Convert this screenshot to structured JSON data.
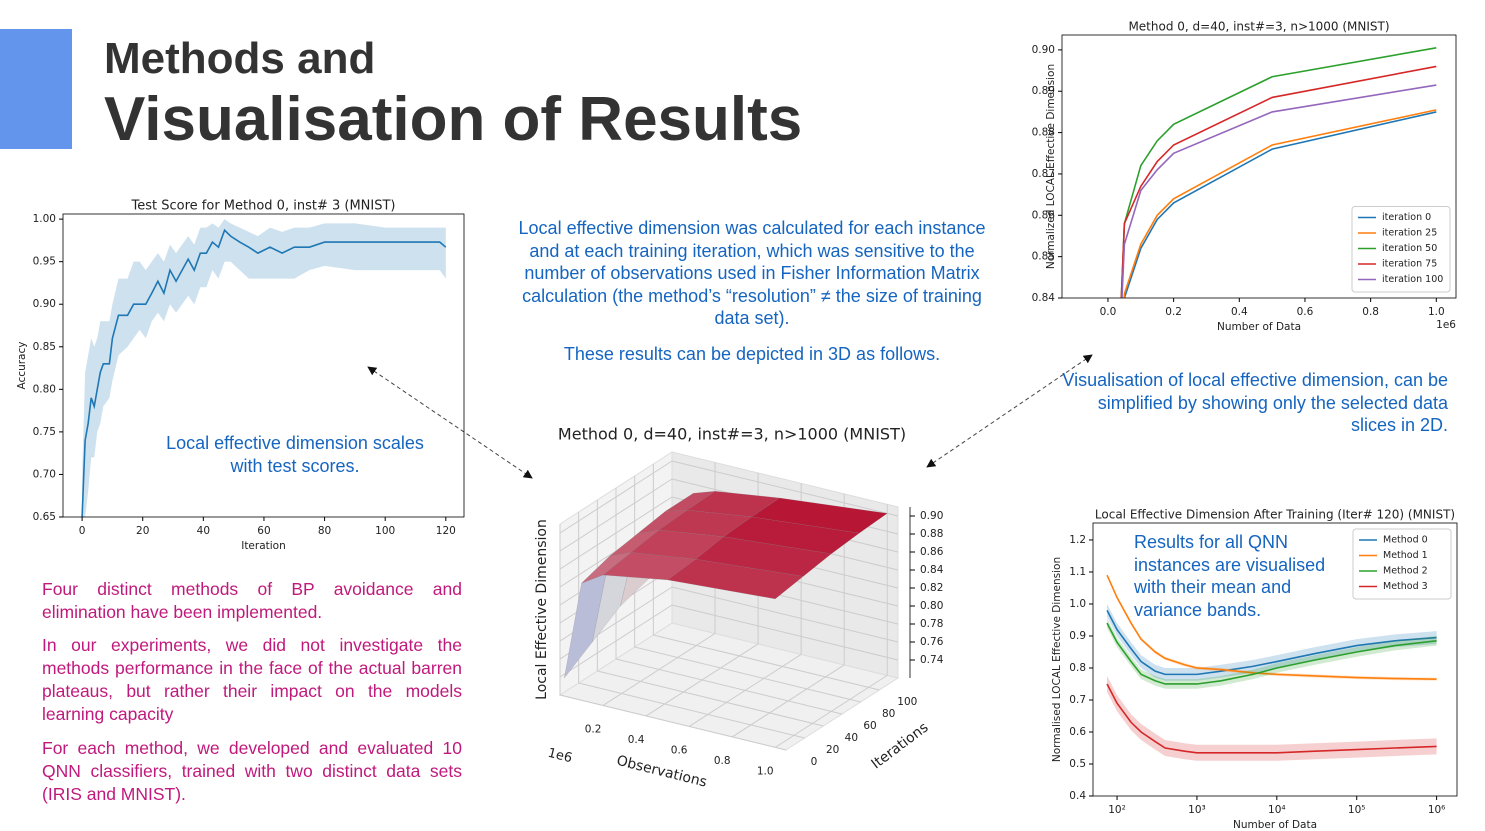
{
  "header": {
    "title_line1": "Methods and",
    "title_line2": "Visualisation of Results"
  },
  "texts": {
    "center": [
      "Local effective dimension was calculated for each instance and at each training iteration, which was sensitive to the number of observations used in Fisher Information Matrix calculation (the method’s “resolution” ≠ the size of training data set).",
      "These results can be depicted in 3D as follows."
    ],
    "right": "Visualisation of local effective dimension, can be simplified by showing only the selected data slices in 2D.",
    "left_annotation": "Local effective dimension scales with test scores.",
    "bottom_left": [
      "Four distinct methods of BP avoidance and elimination have been implemented.",
      "In our experiments, we did not investigate the methods performance in the face of the actual barren plateaus, but rather their impact on the models learning capacity",
      "For each method, we developed and evaluated 10 QNN classifiers, trained  with two distinct data sets (IRIS and MNIST)."
    ],
    "chart_note": "Results for all QNN instances are visualised with their mean and variance bands."
  },
  "chart_data": [
    {
      "type": "line",
      "title": "Test Score for Method 0, inst# 3 (MNIST)",
      "x_label": "Iteration",
      "y_label": "Accuracy",
      "color": "#1f77b4",
      "x": [
        0,
        1,
        2,
        3,
        4,
        5,
        6,
        7,
        9,
        10,
        12,
        15,
        17,
        19,
        21,
        23,
        25,
        27,
        29,
        31,
        33,
        35,
        37,
        39,
        41,
        43,
        45,
        47,
        49,
        52,
        55,
        58,
        62,
        66,
        70,
        75,
        80,
        90,
        100,
        110,
        118,
        120
      ],
      "values": [
        0.65,
        0.74,
        0.76,
        0.79,
        0.78,
        0.8,
        0.82,
        0.83,
        0.83,
        0.86,
        0.887,
        0.887,
        0.9,
        0.9,
        0.9,
        0.913,
        0.927,
        0.913,
        0.94,
        0.927,
        0.94,
        0.953,
        0.94,
        0.96,
        0.96,
        0.973,
        0.967,
        0.987,
        0.98,
        0.973,
        0.967,
        0.96,
        0.967,
        0.96,
        0.967,
        0.967,
        0.973,
        0.973,
        0.973,
        0.973,
        0.973,
        0.967
      ],
      "lower": [
        0.6,
        0.65,
        0.68,
        0.72,
        0.72,
        0.75,
        0.76,
        0.78,
        0.79,
        0.81,
        0.84,
        0.85,
        0.86,
        0.87,
        0.86,
        0.88,
        0.89,
        0.88,
        0.9,
        0.89,
        0.9,
        0.91,
        0.9,
        0.92,
        0.92,
        0.94,
        0.93,
        0.95,
        0.95,
        0.94,
        0.93,
        0.93,
        0.93,
        0.93,
        0.93,
        0.94,
        0.945,
        0.94,
        0.94,
        0.94,
        0.94,
        0.93
      ],
      "upper": [
        0.7,
        0.82,
        0.84,
        0.86,
        0.85,
        0.86,
        0.88,
        0.88,
        0.88,
        0.9,
        0.93,
        0.93,
        0.95,
        0.95,
        0.94,
        0.95,
        0.96,
        0.95,
        0.97,
        0.96,
        0.97,
        0.98,
        0.97,
        0.99,
        0.99,
        0.995,
        0.99,
        1.0,
        0.995,
        0.99,
        0.985,
        0.98,
        0.99,
        0.985,
        0.99,
        0.99,
        0.995,
        0.995,
        0.99,
        0.99,
        0.99,
        0.99
      ],
      "xlim": [
        -6.3,
        126
      ],
      "xticks": [
        0,
        20,
        40,
        60,
        80,
        100,
        120
      ],
      "ylim": [
        0.65,
        1.006
      ],
      "yticks": [
        {
          "value": 0.65,
          "label": "0.65"
        },
        {
          "value": 0.7,
          "label": "0.70"
        },
        {
          "value": 0.75,
          "label": "0.75"
        },
        {
          "value": 0.8,
          "label": "0.80"
        },
        {
          "value": 0.85,
          "label": "0.85"
        },
        {
          "value": 0.9,
          "label": "0.90"
        },
        {
          "value": 0.95,
          "label": "0.95"
        },
        {
          "value": 1,
          "label": "1.00"
        }
      ]
    },
    {
      "type": "surface",
      "title": "Method 0, d=40, inst#=3, n>1000 (MNIST)",
      "x_label": "Observations",
      "y_label": "Iterations",
      "z_label": "Local Effective Dimension",
      "x_offset_label": "1e6",
      "x": [
        0.02,
        0.1,
        0.2,
        0.5,
        1.0
      ],
      "y": [
        0,
        30,
        60,
        90,
        120
      ],
      "z": [
        [
          0.74,
          0.85,
          0.865,
          0.877,
          0.885
        ],
        [
          0.76,
          0.86,
          0.87,
          0.88,
          0.89
        ],
        [
          0.78,
          0.865,
          0.875,
          0.885,
          0.895
        ],
        [
          0.79,
          0.87,
          0.877,
          0.887,
          0.898
        ],
        [
          0.79,
          0.87,
          0.878,
          0.888,
          0.9
        ]
      ],
      "xlim": [
        0,
        1.05
      ],
      "xticks": [
        0.2,
        0.4,
        0.6,
        0.8,
        {
          "value": 1,
          "label": "1.0"
        }
      ],
      "ylim": [
        0,
        120
      ],
      "yticks": [
        0,
        20,
        40,
        60,
        80,
        100
      ],
      "zlim": [
        0.72,
        0.91
      ],
      "zticks": [
        0.74,
        0.76,
        0.78,
        {
          "value": 0.8,
          "label": "0.80"
        },
        0.82,
        0.84,
        0.86,
        0.88,
        {
          "value": 0.9,
          "label": "0.90"
        }
      ]
    },
    {
      "type": "line",
      "title": "Method 0, d=40, inst#=3, n>1000 (MNIST)",
      "x_label": "Number of Data",
      "y_label": "Normalized LOCAL Effective Dimension",
      "x_offset_label": "1e6",
      "legend": "lower right",
      "x": [
        0.02,
        0.05,
        0.1,
        0.15,
        0.2,
        0.5,
        1.0
      ],
      "series": [
        {
          "name": "iteration 0",
          "color": "#1f77b4",
          "values": [
            0.8,
            0.84,
            0.852,
            0.859,
            0.863,
            0.876,
            0.885
          ]
        },
        {
          "name": "iteration 25",
          "color": "#ff7f0e",
          "values": [
            0.8,
            0.841,
            0.853,
            0.86,
            0.864,
            0.877,
            0.8855
          ]
        },
        {
          "name": "iteration 50",
          "color": "#2ca02c",
          "values": [
            0.8,
            0.858,
            0.872,
            0.878,
            0.882,
            0.8935,
            0.9005
          ]
        },
        {
          "name": "iteration 75",
          "color": "#d62728",
          "values": [
            0.8,
            0.858,
            0.867,
            0.873,
            0.877,
            0.8885,
            0.896
          ]
        },
        {
          "name": "iteration 100",
          "color": "#9467bd",
          "values": [
            0.8,
            0.853,
            0.866,
            0.871,
            0.875,
            0.885,
            0.8915
          ]
        }
      ],
      "xlim": [
        -0.14,
        1.06
      ],
      "xticks": [
        {
          "value": 0,
          "label": "0.0"
        },
        0.2,
        0.4,
        0.6,
        0.8,
        {
          "value": 1,
          "label": "1.0"
        }
      ],
      "ylim": [
        0.84,
        0.9036
      ],
      "yticks": [
        0.84,
        0.85,
        0.86,
        0.87,
        0.88,
        0.89,
        {
          "value": 0.9,
          "label": "0.90"
        }
      ]
    },
    {
      "type": "line",
      "title": "Local Effective Dimension After Training (Iter# 120) (MNIST)",
      "x_label": "Number of Data",
      "y_label": "Normalised LOCAL Effective Dimension",
      "legend": "upper right",
      "xscale": "log",
      "x": [
        75,
        100,
        150,
        200,
        300,
        400,
        700,
        1000,
        2000,
        5000,
        10000,
        30000,
        100000,
        300000,
        1000000
      ],
      "series": [
        {
          "name": "Method 0",
          "color": "#1f77b4",
          "error": 0.02,
          "values": [
            0.98,
            0.92,
            0.86,
            0.82,
            0.79,
            0.78,
            0.78,
            0.78,
            0.79,
            0.805,
            0.82,
            0.845,
            0.87,
            0.885,
            0.895
          ]
        },
        {
          "name": "Method 1",
          "color": "#ff7f0e",
          "error": 0.005,
          "values": [
            1.09,
            1.02,
            0.94,
            0.89,
            0.85,
            0.83,
            0.81,
            0.8,
            0.795,
            0.785,
            0.78,
            0.775,
            0.77,
            0.767,
            0.765
          ]
        },
        {
          "name": "Method 2",
          "color": "#2ca02c",
          "error": 0.015,
          "values": [
            0.94,
            0.88,
            0.82,
            0.78,
            0.76,
            0.75,
            0.75,
            0.75,
            0.76,
            0.78,
            0.8,
            0.825,
            0.85,
            0.87,
            0.885
          ]
        },
        {
          "name": "Method 3",
          "color": "#d62728",
          "error": 0.025,
          "values": [
            0.75,
            0.69,
            0.63,
            0.6,
            0.57,
            0.55,
            0.54,
            0.535,
            0.535,
            0.535,
            0.535,
            0.54,
            0.545,
            0.55,
            0.555
          ]
        }
      ],
      "xlim": [
        50,
        1800000
      ],
      "xticks": [
        {
          "value": 100,
          "label": "10²"
        },
        {
          "value": 1000,
          "label": "10³"
        },
        {
          "value": 10000,
          "label": "10⁴"
        },
        {
          "value": 100000,
          "label": "10⁵"
        },
        {
          "value": 1000000,
          "label": "10⁶"
        }
      ],
      "ylim": [
        0.4,
        1.253
      ],
      "yticks": [
        0.4,
        0.5,
        0.6,
        0.7,
        0.8,
        0.9,
        {
          "value": 1,
          "label": "1.0"
        },
        1.1,
        1.2
      ]
    }
  ]
}
